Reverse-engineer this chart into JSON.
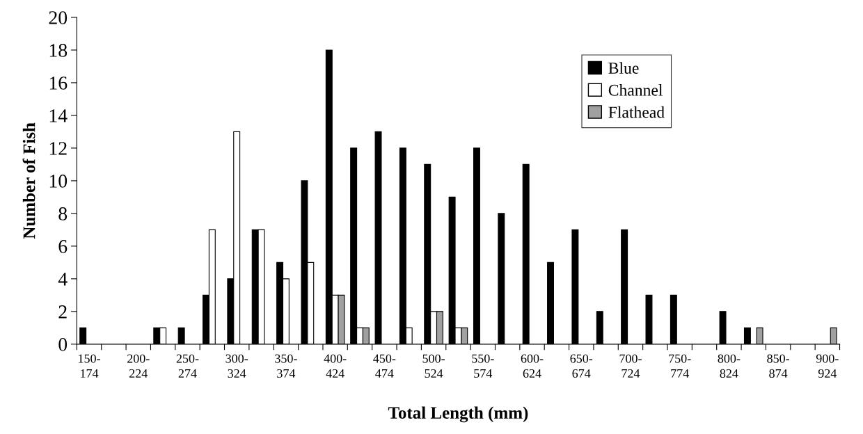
{
  "chart_data": {
    "type": "bar",
    "xlabel": "Total Length (mm)",
    "ylabel": "Number of Fish",
    "categories": [
      "150-174",
      null,
      "200-224",
      null,
      "250-274",
      null,
      "300-324",
      null,
      "350-374",
      null,
      "400-424",
      null,
      "450-474",
      null,
      "500-524",
      null,
      "550-574",
      null,
      "600-624",
      null,
      "650-674",
      null,
      "700-724",
      null,
      "750-774",
      null,
      "800-824",
      null,
      "850-874",
      null,
      "900-924"
    ],
    "series": [
      {
        "name": "Blue",
        "color": "#000000",
        "values": [
          1,
          0,
          0,
          1,
          1,
          3,
          4,
          7,
          5,
          10,
          18,
          12,
          13,
          12,
          11,
          9,
          12,
          8,
          11,
          5,
          7,
          2,
          7,
          3,
          3,
          0,
          2,
          1,
          0,
          0,
          0
        ]
      },
      {
        "name": "Channel",
        "color": "#ffffff",
        "values": [
          0,
          0,
          0,
          1,
          0,
          7,
          13,
          7,
          4,
          5,
          3,
          1,
          0,
          1,
          2,
          1,
          0,
          0,
          0,
          0,
          0,
          0,
          0,
          0,
          0,
          0,
          0,
          0,
          0,
          0,
          0
        ]
      },
      {
        "name": "Flathead",
        "color": "#a0a0a0",
        "values": [
          0,
          0,
          0,
          0,
          0,
          0,
          0,
          0,
          0,
          0,
          3,
          1,
          0,
          0,
          2,
          1,
          0,
          0,
          0,
          0,
          0,
          0,
          0,
          0,
          0,
          0,
          0,
          1,
          0,
          0,
          1
        ]
      }
    ],
    "ylim": [
      0,
      20
    ],
    "yticks": [
      0,
      2,
      4,
      6,
      8,
      10,
      12,
      14,
      16,
      18,
      20
    ],
    "grid": false,
    "legend": "top right"
  }
}
